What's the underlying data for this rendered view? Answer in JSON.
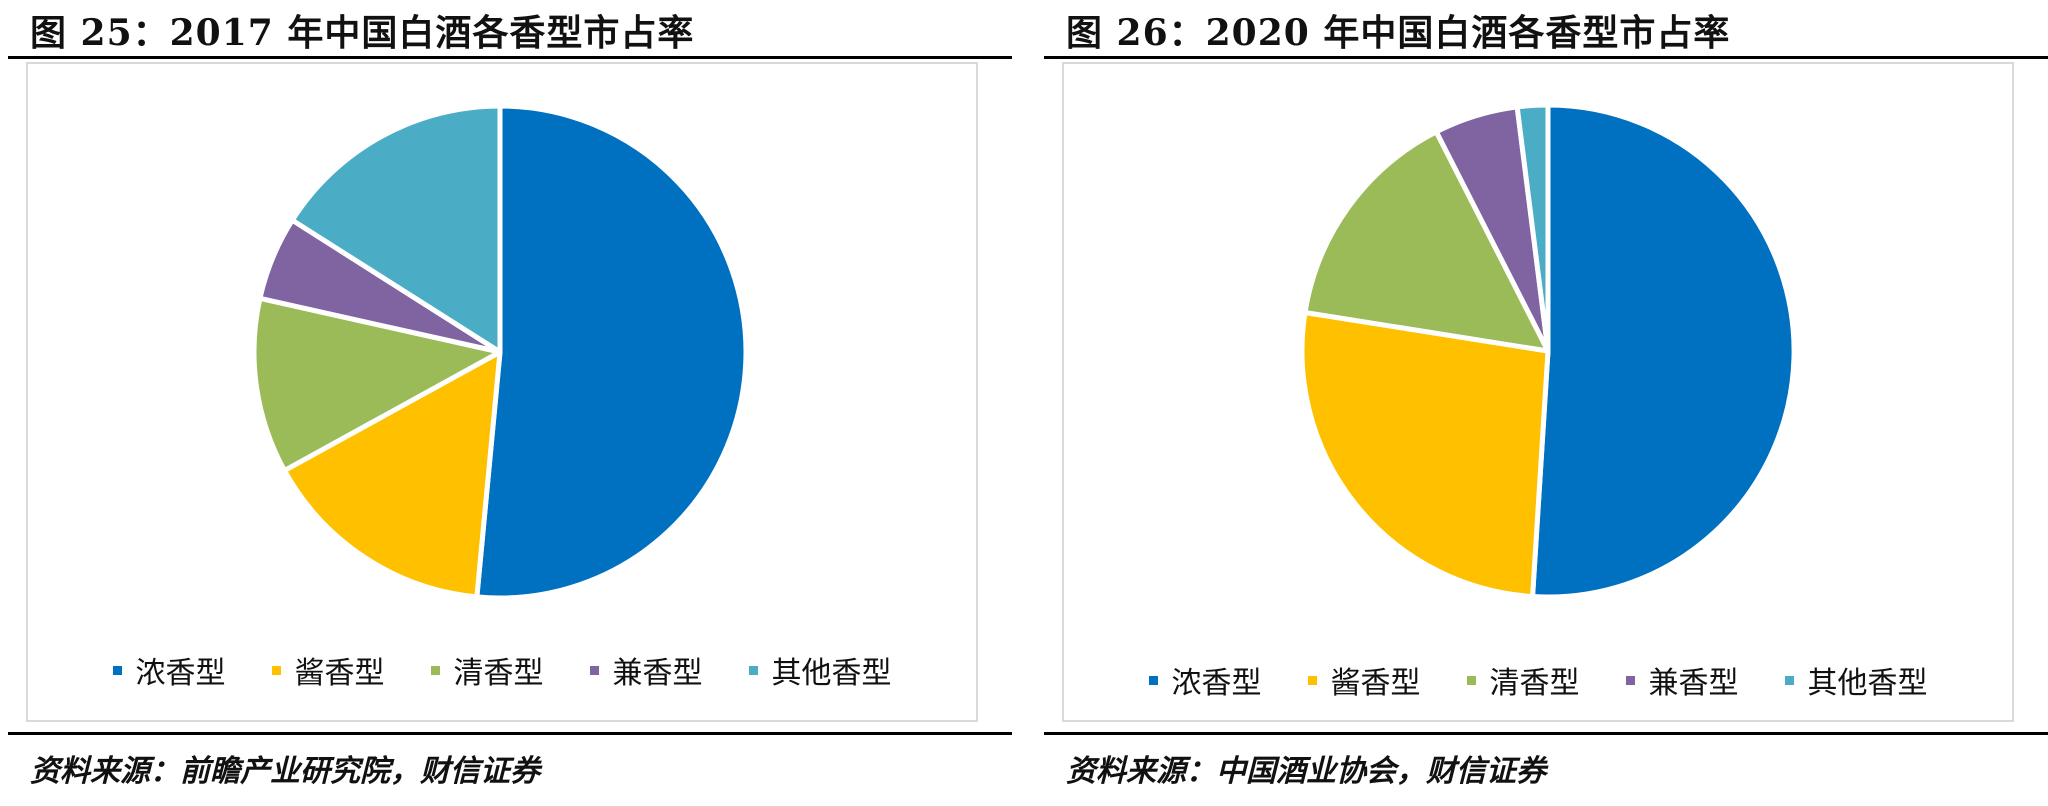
{
  "panels": [
    {
      "title": "图 25：2017 年中国白酒各香型市占率",
      "source": "资料来源：前瞻产业研究院，财信证券",
      "chart_data": {
        "type": "pie",
        "title": "",
        "categories": [
          "浓香型",
          "酱香型",
          "清香型",
          "兼香型",
          "其他香型"
        ],
        "values": [
          51.5,
          15.5,
          11.5,
          5.5,
          16.0
        ],
        "colors": [
          "#0070C0",
          "#FFC000",
          "#9BBB59",
          "#8064A2",
          "#4BACC6"
        ],
        "start_angle_deg": 0,
        "direction": "clockwise",
        "legend_position": "bottom"
      }
    },
    {
      "title": "图 26：2020 年中国白酒各香型市占率",
      "source": "资料来源：中国酒业协会，财信证券",
      "chart_data": {
        "type": "pie",
        "title": "",
        "categories": [
          "浓香型",
          "酱香型",
          "清香型",
          "兼香型",
          "其他香型"
        ],
        "values": [
          51,
          26.5,
          15,
          5.5,
          2
        ],
        "colors": [
          "#0070C0",
          "#FFC000",
          "#9BBB59",
          "#8064A2",
          "#4BACC6"
        ],
        "start_angle_deg": 0,
        "direction": "clockwise",
        "legend_position": "bottom"
      }
    }
  ]
}
